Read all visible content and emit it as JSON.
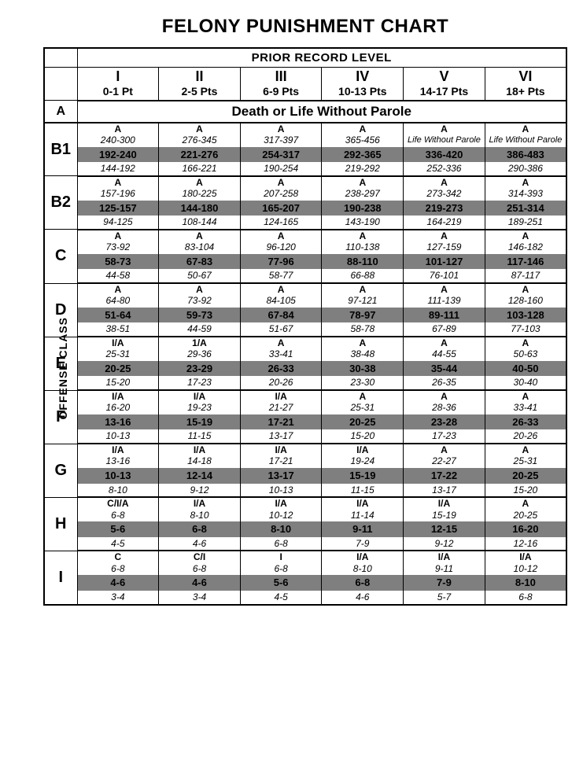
{
  "title": "FELONY PUNISHMENT CHART",
  "side_label": "OFFENSE CLASS",
  "prior_header": "PRIOR RECORD LEVEL",
  "classA_label": "A",
  "classA_text": "Death or Life Without Parole",
  "columns": [
    {
      "roman": "I",
      "pts": "0-1 Pt"
    },
    {
      "roman": "II",
      "pts": "2-5 Pts"
    },
    {
      "roman": "III",
      "pts": "6-9 Pts"
    },
    {
      "roman": "IV",
      "pts": "10-13 Pts"
    },
    {
      "roman": "V",
      "pts": "14-17 Pts"
    },
    {
      "roman": "VI",
      "pts": "18+ Pts"
    }
  ],
  "classes": [
    {
      "label": "B1",
      "cells": [
        {
          "disp": "A",
          "agg": "240-300",
          "pre": "192-240",
          "mit": "144-192"
        },
        {
          "disp": "A",
          "agg": "276-345",
          "pre": "221-276",
          "mit": "166-221"
        },
        {
          "disp": "A",
          "agg": "317-397",
          "pre": "254-317",
          "mit": "190-254"
        },
        {
          "disp": "A",
          "agg": "365-456",
          "pre": "292-365",
          "mit": "219-292"
        },
        {
          "disp": "A",
          "agg": "Life Without Parole",
          "lwop": true,
          "pre": "336-420",
          "mit": "252-336"
        },
        {
          "disp": "A",
          "agg": "Life Without Parole",
          "lwop": true,
          "pre": "386-483",
          "mit": "290-386"
        }
      ]
    },
    {
      "label": "B2",
      "cells": [
        {
          "disp": "A",
          "agg": "157-196",
          "pre": "125-157",
          "mit": "94-125"
        },
        {
          "disp": "A",
          "agg": "180-225",
          "pre": "144-180",
          "mit": "108-144"
        },
        {
          "disp": "A",
          "agg": "207-258",
          "pre": "165-207",
          "mit": "124-165"
        },
        {
          "disp": "A",
          "agg": "238-297",
          "pre": "190-238",
          "mit": "143-190"
        },
        {
          "disp": "A",
          "agg": "273-342",
          "pre": "219-273",
          "mit": "164-219"
        },
        {
          "disp": "A",
          "agg": "314-393",
          "pre": "251-314",
          "mit": "189-251"
        }
      ]
    },
    {
      "label": "C",
      "cells": [
        {
          "disp": "A",
          "agg": "73-92",
          "pre": "58-73",
          "mit": "44-58"
        },
        {
          "disp": "A",
          "agg": "83-104",
          "pre": "67-83",
          "mit": "50-67"
        },
        {
          "disp": "A",
          "agg": "96-120",
          "pre": "77-96",
          "mit": "58-77"
        },
        {
          "disp": "A",
          "agg": "110-138",
          "pre": "88-110",
          "mit": "66-88"
        },
        {
          "disp": "A",
          "agg": "127-159",
          "pre": "101-127",
          "mit": "76-101"
        },
        {
          "disp": "A",
          "agg": "146-182",
          "pre": "117-146",
          "mit": "87-117"
        }
      ]
    },
    {
      "label": "D",
      "cells": [
        {
          "disp": "A",
          "agg": "64-80",
          "pre": "51-64",
          "mit": "38-51"
        },
        {
          "disp": "A",
          "agg": "73-92",
          "pre": "59-73",
          "mit": "44-59"
        },
        {
          "disp": "A",
          "agg": "84-105",
          "pre": "67-84",
          "mit": "51-67"
        },
        {
          "disp": "A",
          "agg": "97-121",
          "pre": "78-97",
          "mit": "58-78"
        },
        {
          "disp": "A",
          "agg": "111-139",
          "pre": "89-111",
          "mit": "67-89"
        },
        {
          "disp": "A",
          "agg": "128-160",
          "pre": "103-128",
          "mit": "77-103"
        }
      ]
    },
    {
      "label": "E",
      "cells": [
        {
          "disp": "I/A",
          "agg": "25-31",
          "pre": "20-25",
          "mit": "15-20"
        },
        {
          "disp": "1/A",
          "agg": "29-36",
          "pre": "23-29",
          "mit": "17-23"
        },
        {
          "disp": "A",
          "agg": "33-41",
          "pre": "26-33",
          "mit": "20-26"
        },
        {
          "disp": "A",
          "agg": "38-48",
          "pre": "30-38",
          "mit": "23-30"
        },
        {
          "disp": "A",
          "agg": "44-55",
          "pre": "35-44",
          "mit": "26-35"
        },
        {
          "disp": "A",
          "agg": "50-63",
          "pre": "40-50",
          "mit": "30-40"
        }
      ]
    },
    {
      "label": "F",
      "cells": [
        {
          "disp": "I/A",
          "agg": "16-20",
          "pre": "13-16",
          "mit": "10-13"
        },
        {
          "disp": "I/A",
          "agg": "19-23",
          "pre": "15-19",
          "mit": "11-15"
        },
        {
          "disp": "I/A",
          "agg": "21-27",
          "pre": "17-21",
          "mit": "13-17"
        },
        {
          "disp": "A",
          "agg": "25-31",
          "pre": "20-25",
          "mit": "15-20"
        },
        {
          "disp": "A",
          "agg": "28-36",
          "pre": "23-28",
          "mit": "17-23"
        },
        {
          "disp": "A",
          "agg": "33-41",
          "pre": "26-33",
          "mit": "20-26"
        }
      ]
    },
    {
      "label": "G",
      "cells": [
        {
          "disp": "I/A",
          "agg": "13-16",
          "pre": "10-13",
          "mit": "8-10"
        },
        {
          "disp": "I/A",
          "agg": "14-18",
          "pre": "12-14",
          "mit": "9-12"
        },
        {
          "disp": "I/A",
          "agg": "17-21",
          "pre": "13-17",
          "mit": "10-13"
        },
        {
          "disp": "I/A",
          "agg": "19-24",
          "pre": "15-19",
          "mit": "11-15"
        },
        {
          "disp": "A",
          "agg": "22-27",
          "pre": "17-22",
          "mit": "13-17"
        },
        {
          "disp": "A",
          "agg": "25-31",
          "pre": "20-25",
          "mit": "15-20"
        }
      ]
    },
    {
      "label": "H",
      "cells": [
        {
          "disp": "C/I/A",
          "agg": "6-8",
          "pre": "5-6",
          "mit": "4-5"
        },
        {
          "disp": "I/A",
          "agg": "8-10",
          "pre": "6-8",
          "mit": "4-6"
        },
        {
          "disp": "I/A",
          "agg": "10-12",
          "pre": "8-10",
          "mit": "6-8"
        },
        {
          "disp": "I/A",
          "agg": "11-14",
          "pre": "9-11",
          "mit": "7-9"
        },
        {
          "disp": "I/A",
          "agg": "15-19",
          "pre": "12-15",
          "mit": "9-12"
        },
        {
          "disp": "A",
          "agg": "20-25",
          "pre": "16-20",
          "mit": "12-16"
        }
      ]
    },
    {
      "label": "I",
      "cells": [
        {
          "disp": "C",
          "agg": "6-8",
          "pre": "4-6",
          "mit": "3-4"
        },
        {
          "disp": "C/I",
          "agg": "6-8",
          "pre": "4-6",
          "mit": "3-4"
        },
        {
          "disp": "I",
          "agg": "6-8",
          "pre": "5-6",
          "mit": "4-5"
        },
        {
          "disp": "I/A",
          "agg": "8-10",
          "pre": "6-8",
          "mit": "4-6"
        },
        {
          "disp": "I/A",
          "agg": "9-11",
          "pre": "7-9",
          "mit": "5-7"
        },
        {
          "disp": "I/A",
          "agg": "10-12",
          "pre": "8-10",
          "mit": "6-8"
        }
      ]
    }
  ]
}
